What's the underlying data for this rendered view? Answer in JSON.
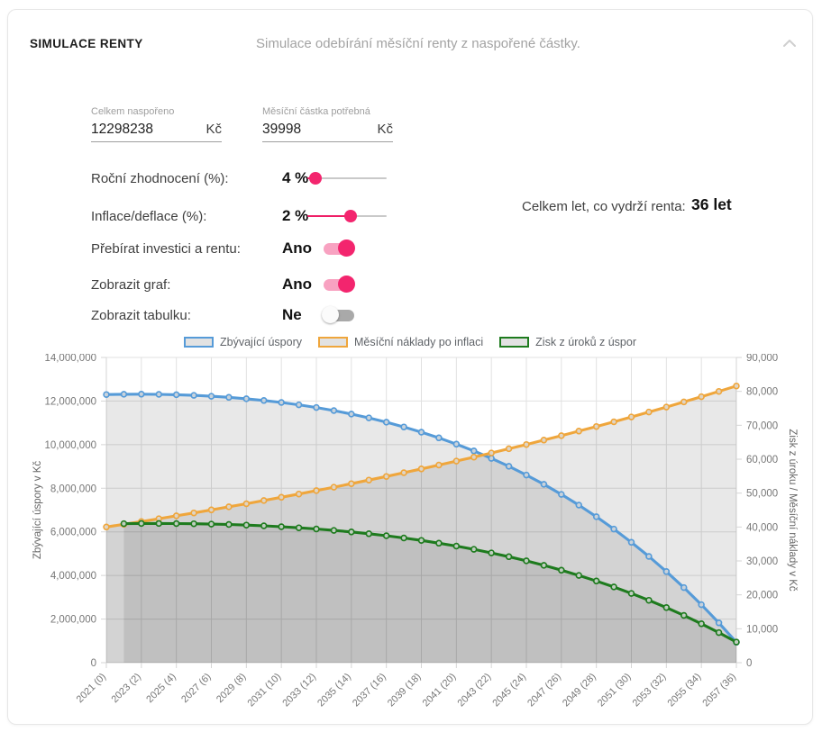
{
  "header": {
    "title": "SIMULACE RENTY",
    "subtitle": "Simulace odebírání měsíční renty z naspořené částky."
  },
  "inputs": [
    {
      "label": "Celkem naspořeno",
      "value": "12298238",
      "unit": "Kč"
    },
    {
      "label": "Měsíční částka potřebná",
      "value": "39998",
      "unit": "Kč"
    }
  ],
  "sliders": [
    {
      "label": "Roční zhodnocení (%):",
      "value": "4 %",
      "percent": 10
    },
    {
      "label": "Inflace/deflace (%):",
      "value": "2 %",
      "percent": 55
    }
  ],
  "toggles": [
    {
      "label": "Přebírat investici a rentu:",
      "state": "Ano",
      "on": true
    },
    {
      "label": "Zobrazit graf:",
      "state": "Ano",
      "on": true
    },
    {
      "label": "Zobrazit tabulku:",
      "state": "Ne",
      "on": false
    }
  ],
  "summary": {
    "label": "Celkem let, co vydrží renta:",
    "value": "36 let"
  },
  "colors": {
    "accent_pink": "#f3256e",
    "accent_pink_light": "#f8a2c1",
    "grid": "#e1e1e1",
    "axis_border": "#d6d6d6",
    "tick_text": "#777777",
    "area_fill": "rgba(0,0,0,0.09)",
    "marker_fill": "#dcdcdc"
  },
  "chart_data": {
    "type": "line",
    "x_start_year": 2021,
    "x_points": 37,
    "x_tick_step": 2,
    "x_tick_labels": [
      "2021 (0)",
      "2023 (2)",
      "2025 (4)",
      "2027 (6)",
      "2029 (8)",
      "2031 (10)",
      "2033 (12)",
      "2035 (14)",
      "2037 (16)",
      "2039 (18)",
      "2041 (20)",
      "2043 (22)",
      "2045 (24)",
      "2047 (26)",
      "2049 (28)",
      "2051 (30)",
      "2053 (32)",
      "2055 (34)",
      "2057 (36)"
    ],
    "left_axis": {
      "title": "Zbývající úspory v Kč",
      "min": 0,
      "max": 14000000,
      "step": 2000000
    },
    "right_axis": {
      "title": "Zisk z úroku / Měsíční náklady v Kč",
      "min": 0,
      "max": 90000,
      "step": 10000
    },
    "series": [
      {
        "name": "Zbývající úspory",
        "axis": "left",
        "color": "#569bd8",
        "start_index": 0,
        "values": [
          12298238,
          12310192,
          12313025,
          12306179,
          12289072,
          12261094,
          12221606,
          12169940,
          12105397,
          12027245,
          11934720,
          11827022,
          11703314,
          11562722,
          11404332,
          11227188,
          11030292,
          10812601,
          10573023,
          10310421,
          10023604,
          9711330,
          9372300,
          9005160,
          8608493,
          8180823,
          7720606,
          7226231,
          6696017,
          6128210,
          5520977,
          4872408,
          4180508,
          3443196,
          2658301,
          1823558,
          936603
        ]
      },
      {
        "name": "Měsíční náklady po inflaci",
        "axis": "right",
        "color": "#efa63c",
        "start_index": 0,
        "values": [
          39998,
          40798,
          41614,
          42446,
          43295,
          44161,
          45044,
          45945,
          46864,
          47801,
          48757,
          49732,
          50727,
          51742,
          52776,
          53832,
          54909,
          56007,
          57127,
          58269,
          59435,
          60623,
          61836,
          63073,
          64334,
          65621,
          66933,
          68272,
          69637,
          71030,
          72451,
          73900,
          75378,
          76885,
          78423,
          79991,
          81591
        ]
      },
      {
        "name": "Zisk z úroků z úspor",
        "axis": "right",
        "color": "#1e7b1e",
        "start_index": 1,
        "values": [
          40994,
          41034,
          41043,
          41021,
          40964,
          40870,
          40739,
          40566,
          40351,
          40091,
          39782,
          39423,
          39011,
          38542,
          38014,
          37424,
          36768,
          36042,
          35243,
          34368,
          33412,
          32371,
          31241,
          30017,
          28695,
          27269,
          25735,
          24087,
          22320,
          20427,
          18403,
          16241,
          13935,
          11477,
          8861,
          6079
        ]
      }
    ],
    "legend_position": "top",
    "grid": true
  }
}
